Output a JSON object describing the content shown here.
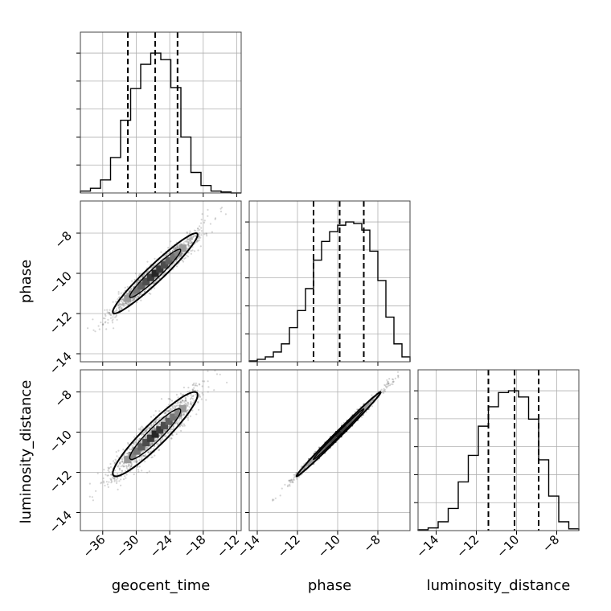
{
  "chart_data": [
    {
      "type": "histogram",
      "panel": "geocent_time",
      "bin_edges": [
        -40,
        -38.2,
        -36.4,
        -34.6,
        -32.8,
        -31,
        -29.2,
        -27.4,
        -25.6,
        -23.8,
        -22,
        -20.2,
        -18.4,
        -16.6,
        -14.8,
        -13,
        -11.2
      ],
      "counts": [
        2,
        5,
        14,
        38,
        78,
        112,
        138,
        150,
        143,
        113,
        60,
        22,
        8,
        2,
        1,
        0
      ],
      "quantile_lines": [
        -31.5,
        -26.6,
        -22.6
      ],
      "xlim": [
        -40,
        -11.2
      ],
      "xticks": [
        "-36",
        "-30",
        "-24",
        "-18",
        "-12"
      ],
      "xlabel": "geocent_time",
      "grid": true
    },
    {
      "type": "histogram",
      "panel": "phase",
      "bin_edges": [
        -14.4,
        -14,
        -13.6,
        -13.2,
        -12.8,
        -12.4,
        -12,
        -11.6,
        -11.2,
        -10.8,
        -10.4,
        -10,
        -9.6,
        -9.2,
        -8.8,
        -8.4,
        -8,
        -7.6,
        -7.2,
        -6.8,
        -6.4
      ],
      "counts": [
        1,
        3,
        6,
        12,
        22,
        42,
        63,
        90,
        125,
        148,
        160,
        168,
        172,
        170,
        162,
        136,
        100,
        55,
        22,
        6
      ],
      "quantile_lines": [
        -11.2,
        -9.9,
        -8.7
      ],
      "xlim": [
        -14.4,
        -6.4
      ],
      "xticks": [
        "-14",
        "-12",
        "-10",
        "-8"
      ],
      "xlabel": "phase",
      "grid": true
    },
    {
      "type": "histogram",
      "panel": "luminosity_distance",
      "bin_edges": [
        -14.9,
        -14.4,
        -13.9,
        -13.4,
        -12.9,
        -12.4,
        -11.9,
        -11.4,
        -10.9,
        -10.4,
        -9.9,
        -9.4,
        -8.9,
        -8.4,
        -7.9,
        -7.4,
        -6.9
      ],
      "counts": [
        1,
        3,
        10,
        25,
        55,
        85,
        118,
        140,
        156,
        158,
        151,
        126,
        80,
        39,
        10,
        2
      ],
      "quantile_lines": [
        -11.4,
        -10.1,
        -8.9
      ],
      "xlim": [
        -14.9,
        -6.9
      ],
      "xticks": [
        "-14",
        "-12",
        "-10",
        "-8"
      ],
      "xlabel": "luminosity_distance",
      "grid": true
    },
    {
      "type": "scatter",
      "panel": "phase vs geocent_time",
      "x_param": "geocent_time",
      "y_param": "phase",
      "x_center": -26.6,
      "y_center": -10.0,
      "x_sd": 3.8,
      "y_sd": 1.0,
      "correlation": 0.96,
      "xlim": [
        -40,
        -11.2
      ],
      "ylim": [
        -14.4,
        -6.4
      ],
      "yticks": [
        "-8",
        "-10",
        "-12",
        "-14"
      ],
      "ylabel": "phase",
      "contours": "1-sigma and 2-sigma density contours",
      "grid": true
    },
    {
      "type": "scatter",
      "panel": "luminosity_distance vs geocent_time",
      "x_param": "geocent_time",
      "y_param": "luminosity_distance",
      "x_center": -26.6,
      "y_center": -10.1,
      "x_sd": 3.8,
      "y_sd": 1.05,
      "correlation": 0.93,
      "xlim": [
        -40,
        -11.2
      ],
      "ylim": [
        -14.9,
        -6.9
      ],
      "xticks": [
        "-36",
        "-30",
        "-24",
        "-18",
        "-12"
      ],
      "yticks": [
        "-8",
        "-10",
        "-12",
        "-14"
      ],
      "xlabel": "geocent_time",
      "ylabel": "luminosity_distance",
      "grid": true
    },
    {
      "type": "scatter",
      "panel": "luminosity_distance vs phase",
      "x_param": "phase",
      "y_param": "luminosity_distance",
      "x_center": -9.95,
      "y_center": -10.1,
      "x_sd": 1.05,
      "y_sd": 1.05,
      "correlation": 0.995,
      "xlim": [
        -14.4,
        -6.4
      ],
      "ylim": [
        -14.9,
        -6.9
      ],
      "xticks": [
        "-14",
        "-12",
        "-10",
        "-8"
      ],
      "xlabel": "phase",
      "grid": true
    }
  ]
}
